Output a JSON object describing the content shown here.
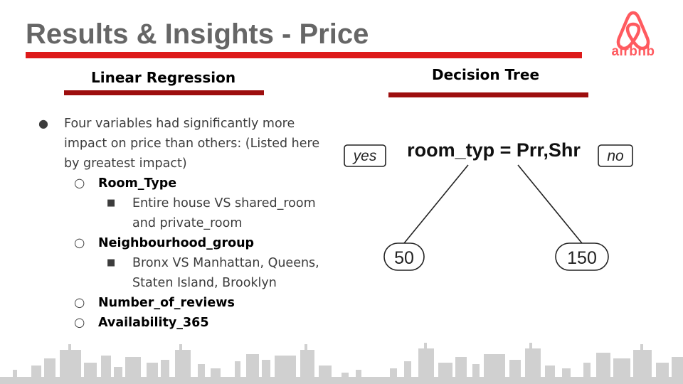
{
  "slide": {
    "title": "Results & Insights - Price",
    "logo_text": "airbnb",
    "colors": {
      "title_rule": "#dd1a1a",
      "section_rule": "#9d0e0e",
      "logo": "#ff5a5f",
      "title_text": "#666666",
      "skyline": "#d0d0d0"
    }
  },
  "linear_regression": {
    "heading": "Linear Regression",
    "intro_line1": "Four variables had significantly more",
    "intro_line2": "impact on price than others: (Listed here",
    "intro_line3": "by greatest impact)",
    "items": [
      {
        "label": "Room_Type",
        "detail_line1": "Entire house VS shared_room",
        "detail_line2": "and private_room"
      },
      {
        "label": "Neighbourhood_group",
        "detail_line1": "Bronx VS Manhattan, Queens,",
        "detail_line2": "Staten Island, Brooklyn"
      },
      {
        "label": "Number_of_reviews"
      },
      {
        "label": "Availability_365"
      }
    ]
  },
  "decision_tree": {
    "heading": "Decision Tree",
    "split_rule": "room_typ = Prr,Shr",
    "yes_label": "yes",
    "no_label": "no",
    "left_leaf": "50",
    "right_leaf": "150"
  }
}
